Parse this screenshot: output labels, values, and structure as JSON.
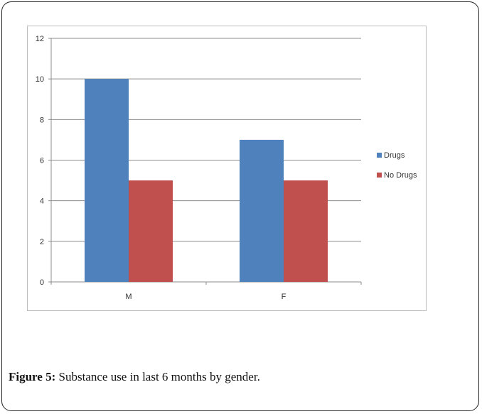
{
  "colors": {
    "series_drugs": "#4f81bd",
    "series_no_drugs": "#c0504d",
    "grid": "#8c8c8c",
    "axis": "#8c8c8c"
  },
  "caption": {
    "label": "Figure 5:",
    "text": " Substance use in last 6 months by gender."
  },
  "chart_data": {
    "type": "bar",
    "categories": [
      "M",
      "F"
    ],
    "series": [
      {
        "name": "Drugs",
        "values": [
          10,
          7
        ]
      },
      {
        "name": "No Drugs",
        "values": [
          5,
          5
        ]
      }
    ],
    "title": "",
    "xlabel": "",
    "ylabel": "",
    "ylim": [
      0,
      12
    ],
    "yticks": [
      0,
      2,
      4,
      6,
      8,
      10,
      12
    ],
    "grid": true,
    "legend": "right"
  }
}
